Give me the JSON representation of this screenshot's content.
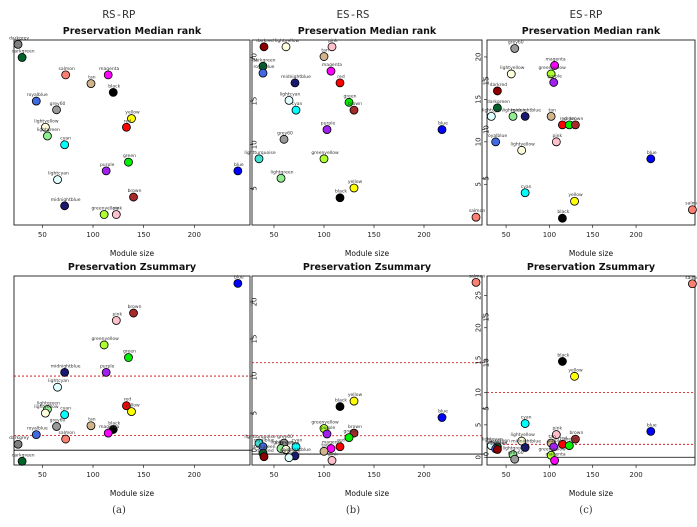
{
  "columns": [
    "RS-RP",
    "ES-RS",
    "ES-RP"
  ],
  "subcaptions": [
    "(a)",
    "(b)",
    "(c)"
  ],
  "chart_data": [
    {
      "type": "scatter",
      "panel": "RS-RP median rank",
      "title": "Preservation Median rank",
      "xlabel": "Module size",
      "ylabel": "",
      "xlim": [
        22,
        255
      ],
      "ylim": [
        0.8,
        22
      ],
      "xticks": [
        50,
        100,
        150,
        200
      ],
      "yticks": [
        5,
        10,
        15,
        20
      ],
      "hlines": [],
      "points": [
        {
          "label": "darkgrey",
          "x": 26,
          "y": 21.5,
          "color": "#808080"
        },
        {
          "label": "darkgreen",
          "x": 30,
          "y": 20,
          "color": "#00642a"
        },
        {
          "label": "salmon",
          "x": 73,
          "y": 18,
          "color": "#fa8072"
        },
        {
          "label": "magenta",
          "x": 115,
          "y": 18,
          "color": "#ff00ff"
        },
        {
          "label": "tan",
          "x": 98,
          "y": 17,
          "color": "#d2b48c"
        },
        {
          "label": "black",
          "x": 120,
          "y": 16,
          "color": "#000000"
        },
        {
          "label": "royalblue",
          "x": 44,
          "y": 15,
          "color": "#4169e1"
        },
        {
          "label": "grey60",
          "x": 64,
          "y": 14,
          "color": "#999999"
        },
        {
          "label": "yellow",
          "x": 138,
          "y": 13,
          "color": "#ffff00"
        },
        {
          "label": "lightyellow",
          "x": 53,
          "y": 12,
          "color": "#ffffe0"
        },
        {
          "label": "red",
          "x": 133,
          "y": 12,
          "color": "#ff0000"
        },
        {
          "label": "lightgreen",
          "x": 55,
          "y": 11,
          "color": "#90ee90"
        },
        {
          "label": "cyan",
          "x": 72,
          "y": 10,
          "color": "#00ffff"
        },
        {
          "label": "green",
          "x": 135,
          "y": 8,
          "color": "#00ee00"
        },
        {
          "label": "purple",
          "x": 113,
          "y": 7,
          "color": "#a020f0"
        },
        {
          "label": "blue",
          "x": 243,
          "y": 7,
          "color": "#0000ff"
        },
        {
          "label": "lightcyan",
          "x": 65,
          "y": 6,
          "color": "#e0ffff"
        },
        {
          "label": "brown",
          "x": 140,
          "y": 4,
          "color": "#a52a2a"
        },
        {
          "label": "midnightblue",
          "x": 72,
          "y": 3,
          "color": "#191970"
        },
        {
          "label": "greenyellow",
          "x": 111,
          "y": 2,
          "color": "#adff2f"
        },
        {
          "label": "pink",
          "x": 123,
          "y": 2,
          "color": "#ffc0cb"
        }
      ]
    },
    {
      "type": "scatter",
      "panel": "ES-RS median rank",
      "title": "Preservation Median rank",
      "xlabel": "Module size",
      "ylabel": "",
      "xlim": [
        28,
        258
      ],
      "ylim": [
        0.2,
        19.2
      ],
      "xticks": [
        50,
        100,
        150,
        200
      ],
      "yticks": [
        5,
        10,
        15
      ],
      "hlines": [],
      "points": [
        {
          "label": "darkred",
          "x": 40,
          "y": 18.5,
          "color": "#8b0000"
        },
        {
          "label": "lightyellow",
          "x": 62,
          "y": 18.5,
          "color": "#ffffe0"
        },
        {
          "label": "pink",
          "x": 108,
          "y": 18.5,
          "color": "#ffc0cb"
        },
        {
          "label": "tan",
          "x": 100,
          "y": 17.5,
          "color": "#d2b48c"
        },
        {
          "label": "darkgreen",
          "x": 39,
          "y": 16.5,
          "color": "#00642a"
        },
        {
          "label": "magenta",
          "x": 107,
          "y": 16,
          "color": "#ff00ff"
        },
        {
          "label": "royalblue",
          "x": 39,
          "y": 15.8,
          "color": "#4169e1"
        },
        {
          "label": "midnightblue",
          "x": 71,
          "y": 14.8,
          "color": "#191970"
        },
        {
          "label": "red",
          "x": 116,
          "y": 14.8,
          "color": "#ff0000"
        },
        {
          "label": "lightcyan",
          "x": 65,
          "y": 13,
          "color": "#e0ffff"
        },
        {
          "label": "green",
          "x": 125,
          "y": 12.8,
          "color": "#00ee00"
        },
        {
          "label": "cyan",
          "x": 72,
          "y": 12,
          "color": "#00ffff"
        },
        {
          "label": "brown",
          "x": 130,
          "y": 12,
          "color": "#a52a2a"
        },
        {
          "label": "purple",
          "x": 103,
          "y": 10,
          "color": "#a020f0"
        },
        {
          "label": "blue",
          "x": 218,
          "y": 10,
          "color": "#0000ff"
        },
        {
          "label": "grey60",
          "x": 60,
          "y": 9,
          "color": "#999999"
        },
        {
          "label": "lightturquoise",
          "x": 35,
          "y": 7,
          "color": "#40e0d0"
        },
        {
          "label": "greenyellow",
          "x": 100,
          "y": 7,
          "color": "#adff2f"
        },
        {
          "label": "lightgreen",
          "x": 57,
          "y": 5,
          "color": "#90ee90"
        },
        {
          "label": "yellow",
          "x": 130,
          "y": 4,
          "color": "#ffff00"
        },
        {
          "label": "black",
          "x": 116,
          "y": 3,
          "color": "#000000"
        },
        {
          "label": "salmon",
          "x": 252,
          "y": 1,
          "color": "#fa8072"
        }
      ]
    },
    {
      "type": "scatter",
      "panel": "ES-RP median rank",
      "title": "Preservation Median rank",
      "xlabel": "Module size",
      "ylabel": "",
      "xlim": [
        28,
        268
      ],
      "ylim": [
        0.2,
        22
      ],
      "xticks": [
        50,
        100,
        150,
        200
      ],
      "yticks": [
        5,
        10,
        15,
        20
      ],
      "hlines": [],
      "points": [
        {
          "label": "grey60",
          "x": 60,
          "y": 21,
          "color": "#999999"
        },
        {
          "label": "magenta",
          "x": 106,
          "y": 19,
          "color": "#ff00ff"
        },
        {
          "label": "lightyellow",
          "x": 56,
          "y": 18,
          "color": "#ffffe0"
        },
        {
          "label": "greenyellow",
          "x": 102,
          "y": 18,
          "color": "#adff2f"
        },
        {
          "label": "purple",
          "x": 105,
          "y": 17,
          "color": "#a020f0"
        },
        {
          "label": "darkred",
          "x": 40,
          "y": 16,
          "color": "#8b0000"
        },
        {
          "label": "darkgreen",
          "x": 40,
          "y": 14,
          "color": "#00642a"
        },
        {
          "label": "lightcyan",
          "x": 33,
          "y": 13,
          "color": "#e0ffff"
        },
        {
          "label": "lightgreen",
          "x": 58,
          "y": 13,
          "color": "#90ee90"
        },
        {
          "label": "midnightblue",
          "x": 72,
          "y": 13,
          "color": "#191970"
        },
        {
          "label": "tan",
          "x": 102,
          "y": 13,
          "color": "#d2b48c"
        },
        {
          "label": "red",
          "x": 115,
          "y": 12,
          "color": "#ff0000"
        },
        {
          "label": "green",
          "x": 123,
          "y": 12,
          "color": "#00ee00"
        },
        {
          "label": "brown",
          "x": 130,
          "y": 12,
          "color": "#a52a2a"
        },
        {
          "label": "royalblue",
          "x": 38,
          "y": 10,
          "color": "#4169e1"
        },
        {
          "label": "pink",
          "x": 108,
          "y": 10,
          "color": "#ffc0cb"
        },
        {
          "label": "lightyellow",
          "x": 68,
          "y": 9,
          "color": "#ffffe0"
        },
        {
          "label": "blue",
          "x": 217,
          "y": 8,
          "color": "#0000ff"
        },
        {
          "label": "cyan",
          "x": 72,
          "y": 4,
          "color": "#00ffff"
        },
        {
          "label": "yellow",
          "x": 129,
          "y": 3,
          "color": "#ffff00"
        },
        {
          "label": "salmon",
          "x": 265,
          "y": 2,
          "color": "#fa8072"
        },
        {
          "label": "black",
          "x": 115,
          "y": 1,
          "color": "#000000"
        }
      ]
    },
    {
      "type": "scatter",
      "panel": "RS-RP Zsummary",
      "title": "Preservation Zsummary",
      "xlabel": "Module size",
      "ylabel": "",
      "xlim": [
        22,
        255
      ],
      "ylim": [
        -2,
        23.5
      ],
      "xticks": [
        50,
        100,
        150,
        200
      ],
      "yticks": [
        0,
        5,
        10,
        15,
        20
      ],
      "hlines": [
        {
          "y": 0,
          "color": "#000000",
          "style": "solid"
        },
        {
          "y": 2,
          "color": "#cc0000",
          "style": "dashed"
        },
        {
          "y": 10,
          "color": "#cc0000",
          "style": "dashed"
        }
      ],
      "points": [
        {
          "label": "blue",
          "x": 243,
          "y": 22.5,
          "color": "#0000ff"
        },
        {
          "label": "brown",
          "x": 140,
          "y": 18.5,
          "color": "#a52a2a"
        },
        {
          "label": "pink",
          "x": 123,
          "y": 17.5,
          "color": "#ffc0cb"
        },
        {
          "label": "greenyellow",
          "x": 111,
          "y": 14.2,
          "color": "#adff2f"
        },
        {
          "label": "green",
          "x": 135,
          "y": 12.5,
          "color": "#00ee00"
        },
        {
          "label": "midnightblue",
          "x": 72,
          "y": 10.5,
          "color": "#191970"
        },
        {
          "label": "purple",
          "x": 113,
          "y": 10.5,
          "color": "#a020f0"
        },
        {
          "label": "lightcyan",
          "x": 65,
          "y": 8.5,
          "color": "#e0ffff"
        },
        {
          "label": "red",
          "x": 133,
          "y": 6,
          "color": "#ff0000"
        },
        {
          "label": "lightgreen",
          "x": 55,
          "y": 5.5,
          "color": "#90ee90"
        },
        {
          "label": "cyan",
          "x": 72,
          "y": 4.8,
          "color": "#00ffff"
        },
        {
          "label": "lightyellow",
          "x": 53,
          "y": 5,
          "color": "#ffffe0"
        },
        {
          "label": "yellow",
          "x": 138,
          "y": 5.2,
          "color": "#ffff00"
        },
        {
          "label": "grey60",
          "x": 64,
          "y": 3.2,
          "color": "#999999"
        },
        {
          "label": "tan",
          "x": 98,
          "y": 3.3,
          "color": "#d2b48c"
        },
        {
          "label": "black",
          "x": 120,
          "y": 2.8,
          "color": "#000000"
        },
        {
          "label": "magenta",
          "x": 115,
          "y": 2.3,
          "color": "#ff00ff"
        },
        {
          "label": "royalblue",
          "x": 44,
          "y": 2.1,
          "color": "#4169e1"
        },
        {
          "label": "salmon",
          "x": 73,
          "y": 1.5,
          "color": "#fa8072"
        },
        {
          "label": "darkgrey",
          "x": 26,
          "y": 0.8,
          "color": "#808080"
        },
        {
          "label": "darkgreen",
          "x": 30,
          "y": -1.5,
          "color": "#00642a"
        }
      ]
    },
    {
      "type": "scatter",
      "panel": "ES-RS Zsummary",
      "title": "Preservation Zsummary",
      "xlabel": "Module size",
      "ylabel": "",
      "xlim": [
        28,
        258
      ],
      "ylim": [
        -1.2,
        19.5
      ],
      "xticks": [
        50,
        100,
        150,
        200
      ],
      "yticks": [
        0,
        5,
        10,
        15
      ],
      "hlines": [
        {
          "y": 0,
          "color": "#000000",
          "style": "solid"
        },
        {
          "y": 2,
          "color": "#cc0000",
          "style": "dashed"
        },
        {
          "y": 10,
          "color": "#cc0000",
          "style": "dashed"
        }
      ],
      "points": [
        {
          "label": "salmon",
          "x": 252,
          "y": 18.8,
          "color": "#fa8072"
        },
        {
          "label": "yellow",
          "x": 130,
          "y": 5.8,
          "color": "#ffff00"
        },
        {
          "label": "black",
          "x": 116,
          "y": 5.2,
          "color": "#000000"
        },
        {
          "label": "blue",
          "x": 218,
          "y": 4,
          "color": "#0000ff"
        },
        {
          "label": "greenyellow",
          "x": 100,
          "y": 2.8,
          "color": "#adff2f"
        },
        {
          "label": "brown",
          "x": 130,
          "y": 2.3,
          "color": "#a52a2a"
        },
        {
          "label": "purple",
          "x": 103,
          "y": 2.2,
          "color": "#a020f0"
        },
        {
          "label": "green",
          "x": 125,
          "y": 1.8,
          "color": "#00ee00"
        },
        {
          "label": "lightturquoise",
          "x": 35,
          "y": 1.2,
          "color": "#40e0d0"
        },
        {
          "label": "grey60",
          "x": 60,
          "y": 1.2,
          "color": "#999999"
        },
        {
          "label": "lightgreen",
          "x": 57,
          "y": 0.6,
          "color": "#90ee90"
        },
        {
          "label": "cyan",
          "x": 72,
          "y": 0.8,
          "color": "#00ffff"
        },
        {
          "label": "red",
          "x": 116,
          "y": 0.8,
          "color": "#ff0000"
        },
        {
          "label": "royalblue",
          "x": 39,
          "y": 0.8,
          "color": "#4169e1"
        },
        {
          "label": "lightyellow",
          "x": 62,
          "y": 0.5,
          "color": "#ffffe0"
        },
        {
          "label": "magenta",
          "x": 107,
          "y": 0.6,
          "color": "#ff00ff"
        },
        {
          "label": "darkgreen",
          "x": 39,
          "y": 0.1,
          "color": "#00642a"
        },
        {
          "label": "darkred",
          "x": 40,
          "y": -0.3,
          "color": "#8b0000"
        },
        {
          "label": "midnightblue",
          "x": 71,
          "y": -0.2,
          "color": "#191970"
        },
        {
          "label": "tan",
          "x": 100,
          "y": 0.3,
          "color": "#d2b48c"
        },
        {
          "label": "lightcyan",
          "x": 65,
          "y": -0.4,
          "color": "#e0ffff"
        },
        {
          "label": "pink",
          "x": 108,
          "y": -0.7,
          "color": "#ffc0cb"
        }
      ]
    },
    {
      "type": "scatter",
      "panel": "ES-RP Zsummary",
      "title": "Preservation Zsummary",
      "xlabel": "Module size",
      "ylabel": "",
      "xlim": [
        28,
        268
      ],
      "ylim": [
        -1.2,
        28
      ],
      "xticks": [
        50,
        100,
        150,
        200
      ],
      "yticks": [
        0,
        5,
        10,
        15,
        20,
        25
      ],
      "hlines": [
        {
          "y": 0,
          "color": "#000000",
          "style": "solid"
        },
        {
          "y": 2,
          "color": "#cc0000",
          "style": "dashed"
        },
        {
          "y": 10,
          "color": "#cc0000",
          "style": "dashed"
        }
      ],
      "points": [
        {
          "label": "salmon",
          "x": 265,
          "y": 26.8,
          "color": "#fa8072"
        },
        {
          "label": "black",
          "x": 115,
          "y": 14.8,
          "color": "#000000"
        },
        {
          "label": "yellow",
          "x": 129,
          "y": 12.5,
          "color": "#ffff00"
        },
        {
          "label": "cyan",
          "x": 72,
          "y": 5.2,
          "color": "#00ffff"
        },
        {
          "label": "blue",
          "x": 217,
          "y": 4,
          "color": "#0000ff"
        },
        {
          "label": "pink",
          "x": 108,
          "y": 3.5,
          "color": "#ffc0cb"
        },
        {
          "label": "brown",
          "x": 130,
          "y": 2.8,
          "color": "#a52a2a"
        },
        {
          "label": "lightyellow",
          "x": 68,
          "y": 2.5,
          "color": "#ffffe0"
        },
        {
          "label": "tan",
          "x": 102,
          "y": 2.2,
          "color": "#d2b48c"
        },
        {
          "label": "red",
          "x": 115,
          "y": 2,
          "color": "#ff0000"
        },
        {
          "label": "green",
          "x": 123,
          "y": 1.8,
          "color": "#00ee00"
        },
        {
          "label": "lightcyan",
          "x": 33,
          "y": 1.8,
          "color": "#e0ffff"
        },
        {
          "label": "darkgreen",
          "x": 40,
          "y": 1.6,
          "color": "#00642a"
        },
        {
          "label": "royalblue",
          "x": 38,
          "y": 1.3,
          "color": "#4169e1"
        },
        {
          "label": "midnightblue",
          "x": 72,
          "y": 1.5,
          "color": "#191970"
        },
        {
          "label": "purple",
          "x": 105,
          "y": 1.6,
          "color": "#a020f0"
        },
        {
          "label": "darkred",
          "x": 40,
          "y": 1.2,
          "color": "#8b0000"
        },
        {
          "label": "lightgreen",
          "x": 58,
          "y": 0.4,
          "color": "#90ee90"
        },
        {
          "label": "greenyellow",
          "x": 102,
          "y": 0.3,
          "color": "#adff2f"
        },
        {
          "label": "grey60",
          "x": 60,
          "y": -0.3,
          "color": "#999999"
        },
        {
          "label": "magenta",
          "x": 106,
          "y": -0.5,
          "color": "#ff00ff"
        }
      ]
    }
  ]
}
